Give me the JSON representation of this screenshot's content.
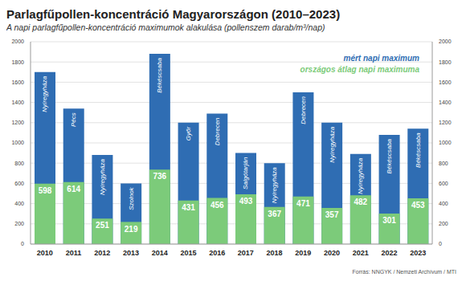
{
  "chart_data": {
    "type": "bar",
    "title": "Parlagfűpollen-koncentráció Magyarországon (2010–2023)",
    "subtitle": "A napi parlagfűpollen-koncentráció maximumok alakulása (pollenszem darab/m³/nap)",
    "source": "Forrás: NNGYK / Nemzeti Archívum / MTI",
    "categories": [
      "2010",
      "2011",
      "2012",
      "2013",
      "2014",
      "2015",
      "2016",
      "2017",
      "2018",
      "2019",
      "2020",
      "2021",
      "2022",
      "2023"
    ],
    "series": [
      {
        "name": "mért napi maximum",
        "color": "#2f6db3",
        "values": [
          1700,
          1340,
          880,
          600,
          1880,
          1200,
          1290,
          900,
          800,
          1500,
          1200,
          890,
          1080,
          1140
        ],
        "annotations": [
          "Nyíregyháza",
          "Pécs",
          "Nyíregyháza",
          "Szolnok",
          "Békéscsaba",
          "Győr",
          "Debrecen",
          "Salgótarján",
          "Nyíregyháza",
          "Debrecen",
          "Nyíregyháza",
          "Nyíregyháza",
          "Békéscsaba",
          "Békéscsaba"
        ]
      },
      {
        "name": "országos átlag napi maximuma",
        "color": "#7ccb7a",
        "values": [
          598,
          614,
          251,
          219,
          736,
          431,
          456,
          493,
          367,
          471,
          357,
          482,
          301,
          453
        ],
        "data_labels": true
      }
    ],
    "ylim": [
      0,
      2000
    ],
    "yticks": [
      0,
      200,
      400,
      600,
      800,
      1000,
      1200,
      1400,
      1600,
      1800,
      2000
    ],
    "grid": true,
    "legend": "upper right"
  }
}
